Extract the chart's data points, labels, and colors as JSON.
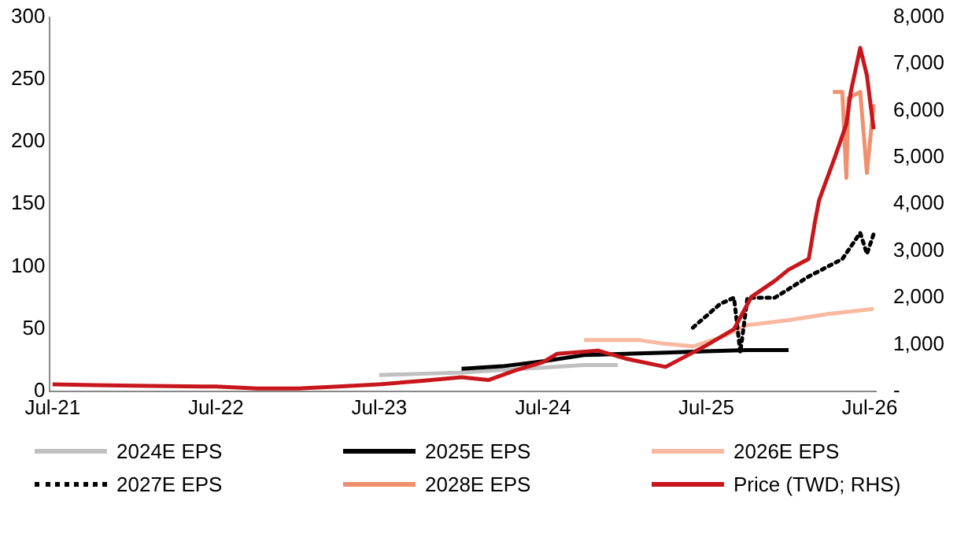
{
  "chart_data": {
    "type": "line",
    "legend": "bottom",
    "grid": false,
    "marker": "none",
    "line_style": "solid",
    "xlim": [
      "2021-06-25",
      "2026-07-15"
    ],
    "xticks": [
      {
        "value": "2021-07-01",
        "label": "Jul-21"
      },
      {
        "value": "2022-07-01",
        "label": "Jul-22"
      },
      {
        "value": "2023-07-01",
        "label": "Jul-23"
      },
      {
        "value": "2024-07-01",
        "label": "Jul-24"
      },
      {
        "value": "2025-07-01",
        "label": "Jul-25"
      },
      {
        "value": "2026-07-01",
        "label": "Jul-26"
      }
    ],
    "ylim": [
      0,
      300
    ],
    "yticks": [
      0,
      50,
      100,
      150,
      200,
      250,
      300
    ],
    "y2lim": [
      0,
      8000
    ],
    "y2ticks": [
      {
        "value": 0,
        "label": "-"
      },
      {
        "value": 1000,
        "label": "1,000"
      },
      {
        "value": 2000,
        "label": "2,000"
      },
      {
        "value": 3000,
        "label": "3,000"
      },
      {
        "value": 4000,
        "label": "4,000"
      },
      {
        "value": 5000,
        "label": "5,000"
      },
      {
        "value": 6000,
        "label": "6,000"
      },
      {
        "value": 7000,
        "label": "7,000"
      },
      {
        "value": 8000,
        "label": "8,000"
      }
    ],
    "series": [
      {
        "name": "2024E EPS",
        "color": "#c0c0c0",
        "x": [
          "2023-07-01",
          "2023-10-01",
          "2024-01-01",
          "2024-04-01",
          "2024-07-01",
          "2024-10-01",
          "2024-12-15"
        ],
        "values": [
          13,
          14,
          15,
          17,
          19,
          21,
          21
        ]
      },
      {
        "name": "2025E EPS",
        "color": "#000000",
        "x": [
          "2024-01-01",
          "2024-04-01",
          "2024-07-01",
          "2024-10-01",
          "2025-01-01",
          "2025-04-01",
          "2025-07-01",
          "2025-10-01",
          "2026-01-01"
        ],
        "values": [
          18,
          20,
          24,
          29,
          30,
          31,
          32,
          33,
          33
        ]
      },
      {
        "name": "2026E EPS",
        "color": "#f8b9a0",
        "x": [
          "2024-10-01",
          "2025-02-01",
          "2025-04-01",
          "2025-06-01",
          "2025-08-01",
          "2025-10-01",
          "2026-01-01",
          "2026-04-01",
          "2026-07-10"
        ],
        "values": [
          41,
          41,
          38,
          36,
          43,
          53,
          57,
          62,
          66
        ]
      },
      {
        "name": "2027E EPS",
        "color": "#000000",
        "line_style": "dotted",
        "x": [
          "2025-06-01",
          "2025-08-01",
          "2025-09-01",
          "2025-09-15",
          "2025-10-01",
          "2025-12-01",
          "2026-02-15",
          "2026-05-01",
          "2026-06-10",
          "2026-06-25",
          "2026-07-10"
        ],
        "values": [
          51,
          70,
          75,
          31,
          75,
          75,
          92,
          106,
          127,
          110,
          126
        ]
      },
      {
        "name": "2028E EPS",
        "color": "#f0906e",
        "x": [
          "2026-04-10",
          "2026-05-01",
          "2026-05-10",
          "2026-05-15",
          "2026-06-10",
          "2026-06-25",
          "2026-07-10"
        ],
        "values": [
          240,
          240,
          171,
          235,
          240,
          175,
          230
        ]
      },
      {
        "name": "Price (TWD; RHS)",
        "color": "#c8161d",
        "axis": "y2",
        "x": [
          "2021-07-01",
          "2021-10-01",
          "2022-01-01",
          "2022-07-01",
          "2022-10-01",
          "2023-01-01",
          "2023-04-01",
          "2023-07-01",
          "2023-10-01",
          "2024-01-01",
          "2024-03-01",
          "2024-05-01",
          "2024-07-01",
          "2024-08-01",
          "2024-11-01",
          "2025-01-01",
          "2025-04-01",
          "2025-07-01",
          "2025-09-01",
          "2025-10-10",
          "2025-12-01",
          "2026-01-01",
          "2026-02-15",
          "2026-03-01",
          "2026-03-10",
          "2026-04-15",
          "2026-05-10",
          "2026-05-20",
          "2026-06-10",
          "2026-06-25",
          "2026-07-10"
        ],
        "values": [
          150,
          130,
          120,
          100,
          60,
          60,
          100,
          150,
          220,
          300,
          240,
          450,
          620,
          800,
          870,
          700,
          520,
          980,
          1330,
          2020,
          2360,
          2600,
          2830,
          3630,
          4080,
          5020,
          5710,
          6400,
          7340,
          6750,
          5600
        ]
      }
    ]
  }
}
